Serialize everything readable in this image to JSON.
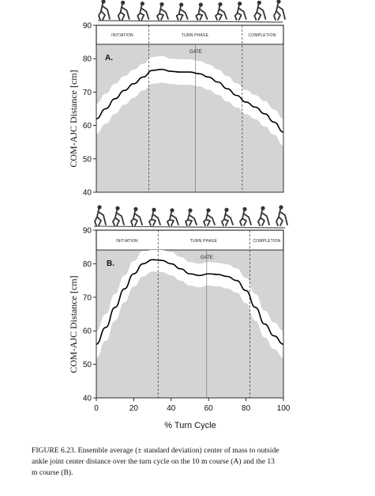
{
  "chart_data": [
    {
      "type": "area",
      "panel_label": "A.",
      "ylabel": "COM-AJC Distance [cm]",
      "ylim": [
        40,
        90
      ],
      "yticks": [
        40,
        50,
        60,
        70,
        80,
        90
      ],
      "xlim": [
        0,
        100
      ],
      "phases": [
        "INITIATION",
        "TURN PHASE",
        "COMPLETION"
      ],
      "phase_boundaries": [
        28,
        78
      ],
      "gate_label": "GATE",
      "gate_x": 53,
      "x": [
        0,
        5,
        10,
        15,
        20,
        25,
        30,
        35,
        40,
        45,
        50,
        55,
        60,
        65,
        70,
        75,
        80,
        85,
        90,
        95,
        100
      ],
      "mean": [
        62,
        65,
        68,
        70.5,
        72.5,
        74.5,
        76.5,
        76.8,
        76.2,
        76.0,
        76.0,
        75.5,
        74.5,
        73.0,
        71.0,
        69.0,
        67.0,
        65.5,
        63.5,
        61.0,
        58.0
      ],
      "sd": [
        4.5,
        4.5,
        4.5,
        4.3,
        4.2,
        4.0,
        4.0,
        4.0,
        3.8,
        3.8,
        3.8,
        3.8,
        3.8,
        3.8,
        3.8,
        3.6,
        3.6,
        3.6,
        3.8,
        3.8,
        4.0
      ]
    },
    {
      "type": "area",
      "panel_label": "B.",
      "ylabel": "COM-AJC Distance [cm]",
      "xlabel": "% Turn Cycle",
      "ylim": [
        40,
        90
      ],
      "yticks": [
        40,
        50,
        60,
        70,
        80,
        90
      ],
      "xlim": [
        0,
        100
      ],
      "xticks": [
        0,
        20,
        40,
        60,
        80,
        100
      ],
      "phases": [
        "INITIATION",
        "TURN PHASE",
        "COMPLETION"
      ],
      "phase_boundaries": [
        33,
        82
      ],
      "gate_label": "GATE",
      "gate_x": 59,
      "x": [
        0,
        5,
        10,
        15,
        20,
        25,
        30,
        35,
        40,
        45,
        50,
        55,
        60,
        65,
        70,
        75,
        80,
        85,
        90,
        95,
        100
      ],
      "mean": [
        56,
        61,
        67,
        72.5,
        77,
        80,
        81.2,
        81,
        80,
        78.5,
        77,
        76.5,
        77,
        76.8,
        76.2,
        75,
        72,
        67,
        62,
        58.5,
        56
      ],
      "sd": [
        4.0,
        4.0,
        4.0,
        4.0,
        3.8,
        3.8,
        3.5,
        3.5,
        3.5,
        3.5,
        3.5,
        3.5,
        3.5,
        3.5,
        3.6,
        3.6,
        3.8,
        4.0,
        4.0,
        4.0,
        4.0
      ]
    }
  ],
  "caption": {
    "line1": "FIGURE 6.23.  Ensemble average (± standard deviation) center of mass to outside",
    "line2": "ankle joint center distance over the turn cycle on the 10 m course (A) and the 13",
    "line3": "m course (B)."
  },
  "colors": {
    "plot_bg": "#d4d4d4",
    "band": "#ffffff",
    "line": "#000000",
    "phase_bg": "#ffffff"
  }
}
